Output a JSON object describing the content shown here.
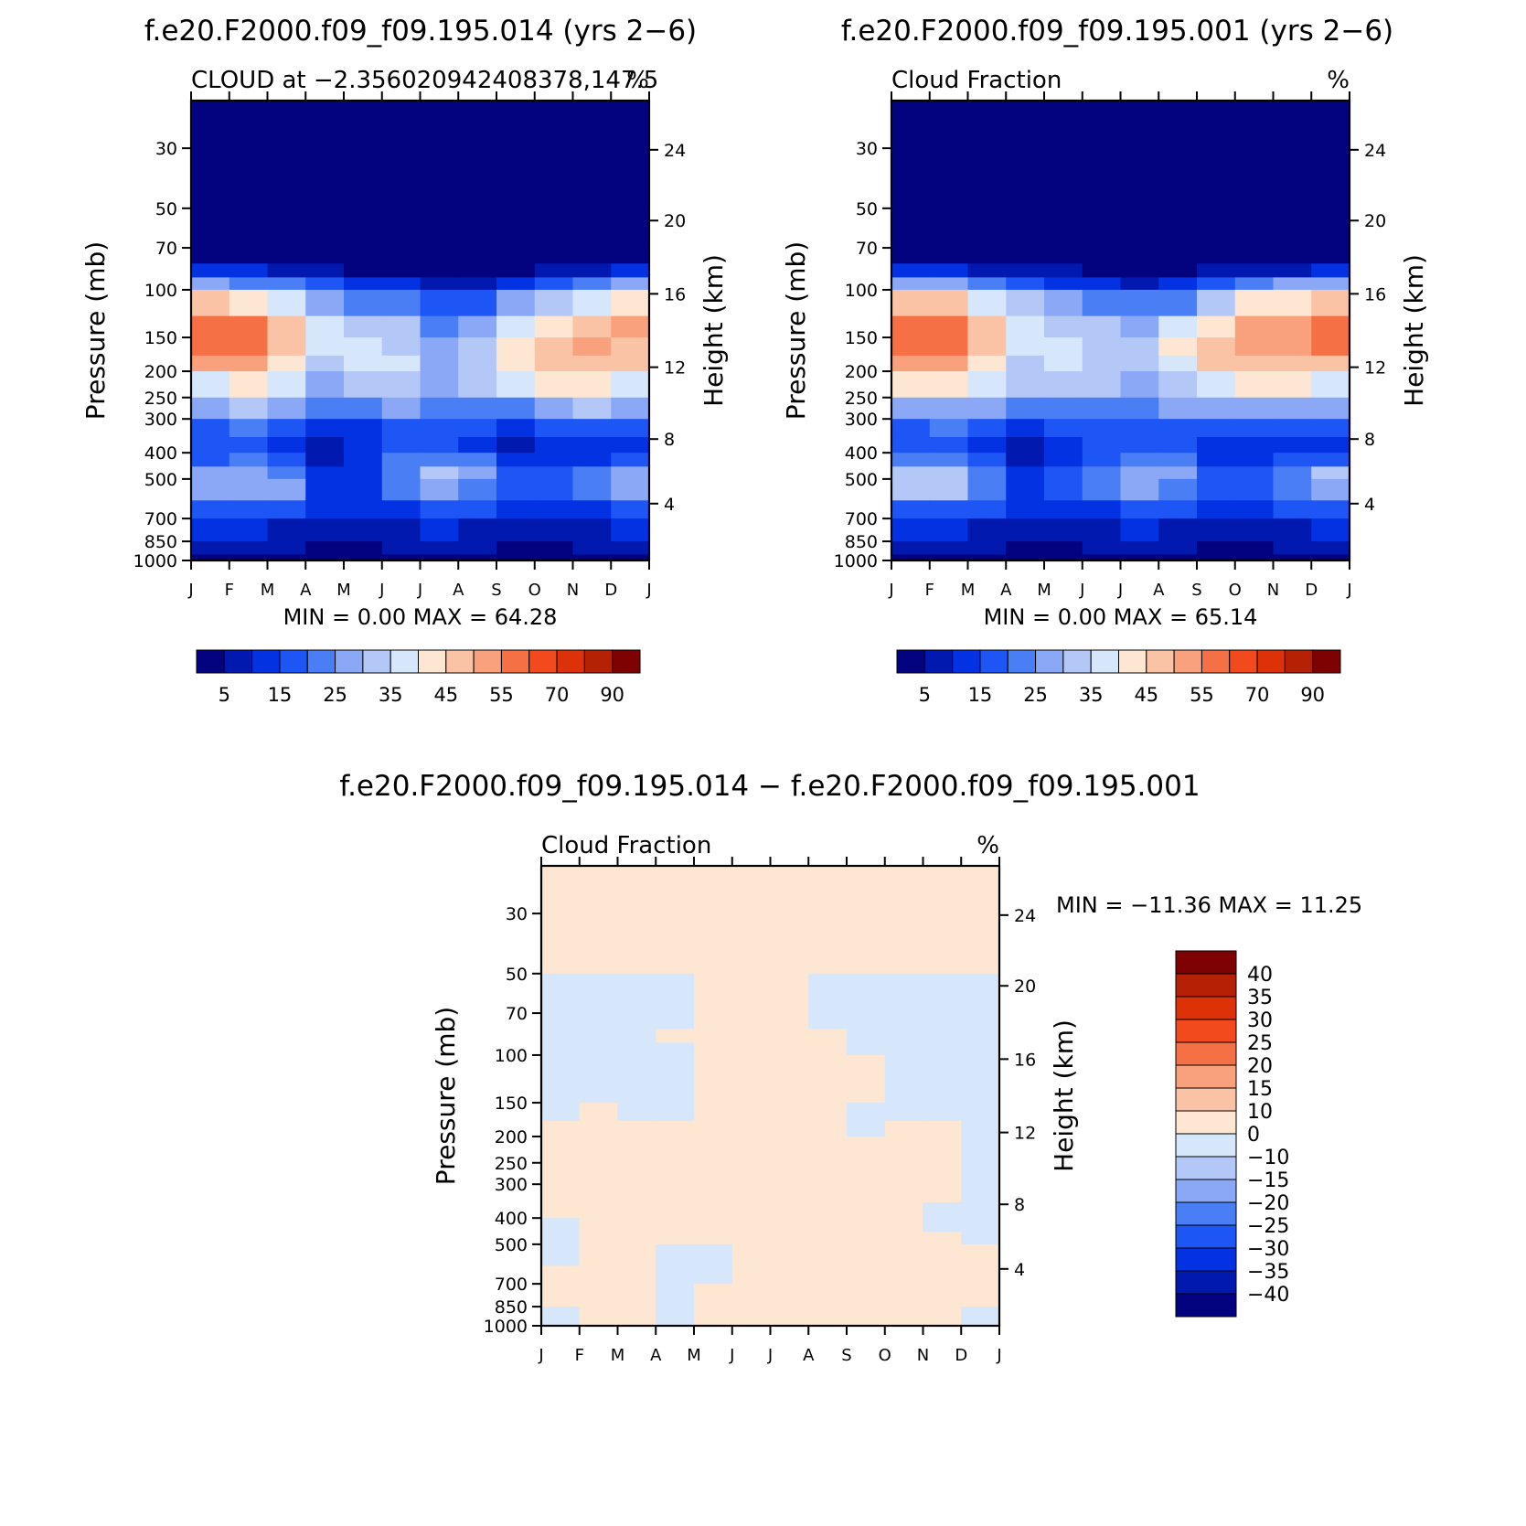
{
  "colors": {
    "seq": [
      "#03037f",
      "#0219b0",
      "#0232e1",
      "#1e55f5",
      "#4a7ef5",
      "#8aa8f5",
      "#b4c8f8",
      "#d6e6fb",
      "#fde6d2",
      "#fbc3a6",
      "#f9a07d",
      "#f57044",
      "#f24a1c",
      "#dd3208",
      "#b52105",
      "#7f0202"
    ],
    "diff": [
      "#03037f",
      "#0219b0",
      "#0232e1",
      "#1e55f5",
      "#4a7ef5",
      "#8aa8f5",
      "#b4c8f8",
      "#d6e6fb",
      "#fde6d2",
      "#fbc3a6",
      "#f9a07d",
      "#f57044",
      "#f24a1c",
      "#dd3208",
      "#b52105",
      "#7f0202"
    ],
    "frame": "#000000"
  },
  "panels": [
    {
      "title": "f.e20.F2000.f09_f09.195.014 (yrs 2−6)",
      "left_string": "CLOUD at −2.356020942408378,147.5",
      "right_string": "%",
      "stats": "MIN =    0.00  MAX =   64.28",
      "xlabel": "",
      "ylabel_left": "Pressure (mb)",
      "ylabel_right": "Height (km)"
    },
    {
      "title": "f.e20.F2000.f09_f09.195.001 (yrs 2−6)",
      "left_string": "Cloud Fraction",
      "right_string": "%",
      "stats": "MIN =    0.00  MAX =   65.14",
      "xlabel": "",
      "ylabel_left": "Pressure (mb)",
      "ylabel_right": "Height (km)"
    },
    {
      "title": "f.e20.F2000.f09_f09.195.014 − f.e20.F2000.f09_f09.195.001",
      "left_string": "Cloud Fraction",
      "right_string": "%",
      "stats": "MIN = −11.36  MAX =   11.25",
      "xlabel": "",
      "ylabel_left": "Pressure (mb)",
      "ylabel_right": "Height (km)"
    }
  ],
  "chart_data": [
    {
      "type": "heatmap",
      "title": "f.e20.F2000.f09_f09.195.014 (yrs 2−6)",
      "subtitle": "CLOUD at −2.356020942408378,147.5",
      "units": "%",
      "x_ticks": [
        "J",
        "F",
        "M",
        "A",
        "M",
        "J",
        "J",
        "A",
        "S",
        "O",
        "N",
        "D",
        "J"
      ],
      "y_ticks_pressure": [
        30,
        50,
        70,
        100,
        150,
        200,
        250,
        300,
        400,
        500,
        700,
        850,
        1000
      ],
      "y_ticks_height": [
        24,
        20,
        16,
        12,
        8,
        4
      ],
      "ylim_pressure": [
        20,
        1000
      ],
      "colorbar_levels": [
        0,
        5,
        10,
        15,
        20,
        25,
        30,
        35,
        40,
        45,
        50,
        55,
        60,
        70,
        80,
        90
      ],
      "colorbar_labels": [
        "5",
        "15",
        "25",
        "35",
        "45",
        "55",
        "70",
        "90"
      ],
      "min": 0.0,
      "max": 64.28,
      "levels_p": [
        20,
        30,
        50,
        70,
        80,
        90,
        100,
        125,
        150,
        175,
        200,
        250,
        300,
        350,
        400,
        450,
        500,
        600,
        700,
        850,
        950,
        1000
      ],
      "values": [
        [
          1,
          1,
          1,
          1,
          1,
          1,
          1,
          1,
          1,
          1,
          1,
          1,
          1
        ],
        [
          1,
          1,
          1,
          1,
          1,
          1,
          1,
          1,
          1,
          1,
          1,
          1,
          1
        ],
        [
          1,
          1,
          1,
          1,
          1,
          1,
          1,
          1,
          1,
          1,
          1,
          1,
          1
        ],
        [
          1,
          1,
          1,
          1,
          1,
          1,
          1,
          1,
          1,
          1,
          1,
          1,
          1
        ],
        [
          6,
          6,
          5,
          3,
          3,
          2,
          2,
          1,
          2,
          3,
          4,
          5,
          6
        ],
        [
          18,
          16,
          14,
          10,
          8,
          6,
          6,
          3,
          6,
          8,
          12,
          14,
          18
        ],
        [
          38,
          36,
          32,
          25,
          20,
          15,
          14,
          8,
          15,
          22,
          30,
          33,
          38
        ],
        [
          55,
          58,
          50,
          38,
          32,
          30,
          28,
          18,
          30,
          38,
          45,
          48,
          50
        ],
        [
          58,
          64,
          56,
          42,
          32,
          36,
          30,
          22,
          38,
          45,
          50,
          52,
          50
        ],
        [
          52,
          58,
          54,
          38,
          30,
          42,
          30,
          26,
          40,
          42,
          50,
          48,
          46
        ],
        [
          45,
          50,
          50,
          36,
          28,
          42,
          30,
          28,
          44,
          40,
          50,
          44,
          42
        ],
        [
          30,
          34,
          38,
          30,
          24,
          32,
          26,
          24,
          30,
          28,
          42,
          36,
          30
        ],
        [
          22,
          24,
          24,
          16,
          14,
          22,
          20,
          18,
          20,
          18,
          24,
          22,
          20
        ],
        [
          12,
          18,
          16,
          8,
          6,
          14,
          16,
          14,
          10,
          8,
          12,
          14,
          12
        ],
        [
          12,
          20,
          18,
          8,
          4,
          16,
          22,
          20,
          14,
          6,
          14,
          10,
          14
        ],
        [
          20,
          26,
          22,
          14,
          6,
          20,
          26,
          30,
          18,
          10,
          18,
          16,
          24
        ],
        [
          38,
          30,
          40,
          20,
          10,
          22,
          30,
          36,
          22,
          14,
          22,
          28,
          44
        ],
        [
          24,
          22,
          24,
          16,
          10,
          16,
          20,
          22,
          16,
          14,
          16,
          18,
          24
        ],
        [
          14,
          14,
          14,
          10,
          8,
          10,
          12,
          12,
          10,
          8,
          10,
          12,
          14
        ],
        [
          10,
          10,
          8,
          4,
          4,
          6,
          8,
          8,
          6,
          4,
          6,
          8,
          10
        ],
        [
          8,
          8,
          6,
          3,
          3,
          5,
          6,
          6,
          5,
          3,
          5,
          6,
          8
        ],
        [
          1,
          1,
          1,
          1,
          1,
          1,
          1,
          1,
          1,
          1,
          1,
          1,
          1
        ]
      ]
    },
    {
      "type": "heatmap",
      "title": "f.e20.F2000.f09_f09.195.001 (yrs 2−6)",
      "subtitle": "Cloud Fraction",
      "units": "%",
      "x_ticks": [
        "J",
        "F",
        "M",
        "A",
        "M",
        "J",
        "J",
        "A",
        "S",
        "O",
        "N",
        "D",
        "J"
      ],
      "y_ticks_pressure": [
        30,
        50,
        70,
        100,
        150,
        200,
        250,
        300,
        400,
        500,
        700,
        850,
        1000
      ],
      "y_ticks_height": [
        24,
        20,
        16,
        12,
        8,
        4
      ],
      "ylim_pressure": [
        20,
        1000
      ],
      "colorbar_levels": [
        0,
        5,
        10,
        15,
        20,
        25,
        30,
        35,
        40,
        45,
        50,
        55,
        60,
        70,
        80,
        90
      ],
      "colorbar_labels": [
        "5",
        "15",
        "25",
        "35",
        "45",
        "55",
        "70",
        "90"
      ],
      "min": 0.0,
      "max": 65.14,
      "levels_p": [
        20,
        30,
        50,
        70,
        80,
        90,
        100,
        125,
        150,
        175,
        200,
        250,
        300,
        350,
        400,
        450,
        500,
        600,
        700,
        850,
        950,
        1000
      ],
      "values": [
        [
          1,
          1,
          1,
          1,
          1,
          1,
          1,
          1,
          1,
          1,
          1,
          1,
          1
        ],
        [
          1,
          1,
          1,
          1,
          1,
          1,
          1,
          1,
          1,
          1,
          1,
          1,
          1
        ],
        [
          1,
          1,
          1,
          1,
          1,
          1,
          1,
          1,
          1,
          1,
          1,
          1,
          1
        ],
        [
          1,
          1,
          1,
          1,
          1,
          1,
          1,
          1,
          1,
          1,
          1,
          1,
          1
        ],
        [
          6,
          6,
          5,
          4,
          3,
          3,
          2,
          2,
          3,
          3,
          4,
          5,
          6
        ],
        [
          18,
          16,
          14,
          12,
          9,
          8,
          6,
          5,
          8,
          10,
          14,
          16,
          20
        ],
        [
          40,
          38,
          34,
          28,
          22,
          18,
          14,
          12,
          20,
          30,
          36,
          38,
          42
        ],
        [
          55,
          60,
          55,
          42,
          34,
          32,
          26,
          28,
          38,
          46,
          52,
          52,
          55
        ],
        [
          58,
          65,
          58,
          42,
          36,
          36,
          28,
          34,
          44,
          50,
          54,
          56,
          58
        ],
        [
          54,
          58,
          54,
          38,
          34,
          38,
          30,
          36,
          46,
          48,
          52,
          52,
          54
        ],
        [
          46,
          50,
          48,
          34,
          32,
          36,
          30,
          34,
          42,
          44,
          48,
          46,
          46
        ],
        [
          32,
          34,
          36,
          28,
          26,
          30,
          26,
          28,
          30,
          30,
          38,
          34,
          32
        ],
        [
          22,
          24,
          24,
          18,
          16,
          22,
          20,
          20,
          22,
          20,
          24,
          22,
          22
        ],
        [
          14,
          18,
          16,
          10,
          8,
          14,
          14,
          14,
          12,
          8,
          12,
          10,
          14
        ],
        [
          14,
          18,
          16,
          8,
          4,
          14,
          18,
          20,
          14,
          6,
          14,
          10,
          14
        ],
        [
          24,
          28,
          22,
          14,
          8,
          18,
          24,
          28,
          18,
          10,
          20,
          20,
          28
        ],
        [
          44,
          36,
          38,
          20,
          12,
          22,
          30,
          36,
          24,
          16,
          24,
          30,
          44
        ],
        [
          26,
          24,
          24,
          16,
          10,
          16,
          20,
          22,
          16,
          14,
          18,
          20,
          24
        ],
        [
          14,
          14,
          14,
          10,
          8,
          10,
          12,
          12,
          10,
          8,
          10,
          12,
          14
        ],
        [
          10,
          10,
          8,
          4,
          4,
          6,
          8,
          8,
          6,
          4,
          6,
          8,
          10
        ],
        [
          8,
          8,
          6,
          3,
          3,
          5,
          6,
          6,
          5,
          3,
          5,
          6,
          8
        ],
        [
          1,
          1,
          1,
          1,
          1,
          1,
          1,
          1,
          1,
          1,
          1,
          1,
          1
        ]
      ]
    },
    {
      "type": "heatmap",
      "title": "f.e20.F2000.f09_f09.195.014 − f.e20.F2000.f09_f09.195.001",
      "subtitle": "Cloud Fraction",
      "units": "%",
      "x_ticks": [
        "J",
        "F",
        "M",
        "A",
        "M",
        "J",
        "J",
        "A",
        "S",
        "O",
        "N",
        "D",
        "J"
      ],
      "y_ticks_pressure": [
        30,
        50,
        70,
        100,
        150,
        200,
        250,
        300,
        400,
        500,
        700,
        850,
        1000
      ],
      "y_ticks_height": [
        24,
        20,
        16,
        12,
        8,
        4
      ],
      "ylim_pressure": [
        20,
        1000
      ],
      "colorbar_levels": [
        -45,
        -40,
        -35,
        -30,
        -25,
        -20,
        -15,
        -10,
        0,
        10,
        15,
        20,
        25,
        30,
        35,
        40,
        45
      ],
      "colorbar_labels": [
        "40",
        "35",
        "30",
        "25",
        "20",
        "15",
        "10",
        "0",
        "−10",
        "−15",
        "−20",
        "−25",
        "−30",
        "−35",
        "−40"
      ],
      "min": -11.36,
      "max": 11.25,
      "levels_p": [
        20,
        30,
        50,
        70,
        80,
        90,
        100,
        125,
        150,
        175,
        200,
        250,
        300,
        350,
        400,
        450,
        500,
        600,
        700,
        850,
        950,
        1000
      ],
      "values": [
        [
          1,
          1,
          1,
          1,
          1,
          1,
          1,
          1,
          1,
          1,
          1,
          1,
          1
        ],
        [
          1,
          1,
          1,
          1,
          1,
          1,
          1,
          1,
          1,
          1,
          1,
          1,
          1
        ],
        [
          -1,
          -1,
          -1,
          -1,
          -1,
          1,
          1,
          -1,
          -1,
          -1,
          -1,
          -1,
          -1
        ],
        [
          -1,
          -1,
          -1,
          -1,
          -1,
          1,
          1,
          -1,
          -1,
          -1,
          -1,
          -1,
          -1
        ],
        [
          -1,
          -1,
          -1,
          -1,
          1,
          1,
          1,
          1,
          -1,
          -1,
          -1,
          -1,
          -1
        ],
        [
          -1,
          -1,
          -1,
          -1,
          1,
          1,
          1,
          1,
          -1,
          -1,
          -1,
          -1,
          -1
        ],
        [
          -1,
          -1,
          -1,
          -1,
          -1,
          1,
          1,
          1,
          1,
          -1,
          -1,
          -1,
          -1
        ],
        [
          -1,
          -1,
          -1,
          -1,
          -1,
          1,
          1,
          1,
          1,
          -1,
          -1,
          -1,
          -1
        ],
        [
          -1,
          -1,
          -1,
          -1,
          -1,
          1,
          1,
          1,
          1,
          -1,
          -1,
          -1,
          -1
        ],
        [
          -1,
          1,
          1,
          -1,
          1,
          1,
          1,
          1,
          -1,
          -1,
          1,
          -1,
          -1
        ],
        [
          -1,
          1,
          1,
          1,
          1,
          1,
          1,
          1,
          1,
          -1,
          1,
          -1,
          -1
        ],
        [
          -1,
          1,
          1,
          1,
          1,
          1,
          1,
          1,
          1,
          1,
          1,
          1,
          -1
        ],
        [
          -1,
          1,
          1,
          1,
          1,
          1,
          1,
          1,
          1,
          1,
          1,
          -1,
          -1
        ],
        [
          -1,
          1,
          1,
          1,
          1,
          1,
          1,
          1,
          1,
          1,
          1,
          -1,
          -1
        ],
        [
          -1,
          1,
          1,
          1,
          1,
          1,
          1,
          1,
          1,
          1,
          -1,
          -1,
          -1
        ],
        [
          -1,
          -1,
          1,
          1,
          1,
          1,
          1,
          1,
          1,
          1,
          -1,
          -1,
          -1
        ],
        [
          -1,
          -1,
          1,
          1,
          -1,
          -1,
          1,
          1,
          -1,
          1,
          1,
          1,
          -1
        ],
        [
          1,
          -1,
          1,
          -1,
          -1,
          -1,
          1,
          1,
          1,
          1,
          1,
          1,
          1
        ],
        [
          1,
          1,
          1,
          -1,
          -1,
          -1,
          1,
          1,
          1,
          1,
          -1,
          1,
          1
        ],
        [
          -1,
          1,
          1,
          -1,
          1,
          1,
          1,
          1,
          1,
          -1,
          1,
          1,
          -1
        ],
        [
          -1,
          -1,
          1,
          -1,
          -1,
          1,
          1,
          1,
          1,
          -1,
          1,
          -1,
          -1
        ],
        [
          -1,
          -1,
          1,
          -1,
          -1,
          1,
          1,
          1,
          1,
          -1,
          1,
          -1,
          -1
        ]
      ]
    }
  ]
}
